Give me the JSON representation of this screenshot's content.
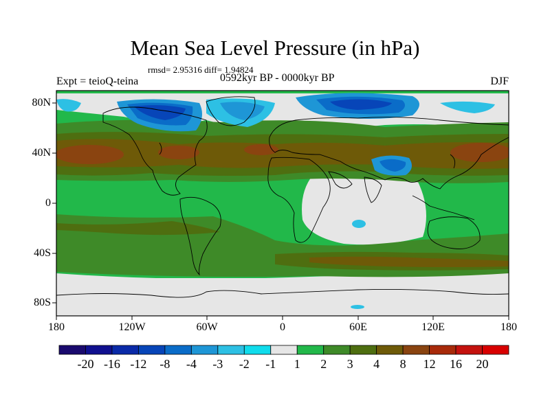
{
  "title": "Mean Sea Level Pressure (in hPa)",
  "stats": "rmsd= 2.95316 diff= 1.94824",
  "expt": "Expt = teioQ-teina",
  "period": "0592kyr BP - 0000kyr BP",
  "season": "DJF",
  "lat_labels": [
    "80N",
    "40N",
    "0",
    "40S",
    "80S"
  ],
  "lon_labels": [
    "180",
    "120W",
    "60W",
    "0",
    "60E",
    "120E",
    "180"
  ],
  "colorbar": {
    "labels": [
      "-20",
      "-16",
      "-12",
      "-8",
      "-4",
      "-3",
      "-2",
      "-1",
      "1",
      "2",
      "3",
      "4",
      "8",
      "12",
      "16",
      "20"
    ],
    "colors": [
      "#1a0a6e",
      "#10108f",
      "#0a2aa8",
      "#0745b8",
      "#0a6cc8",
      "#1e96d6",
      "#2dc0e4",
      "#10dcec",
      "#e6e6e6",
      "#22b84a",
      "#3e8a28",
      "#4e6e10",
      "#6e5a08",
      "#8a4410",
      "#a82a0a",
      "#c4120e",
      "#d80000"
    ]
  }
}
